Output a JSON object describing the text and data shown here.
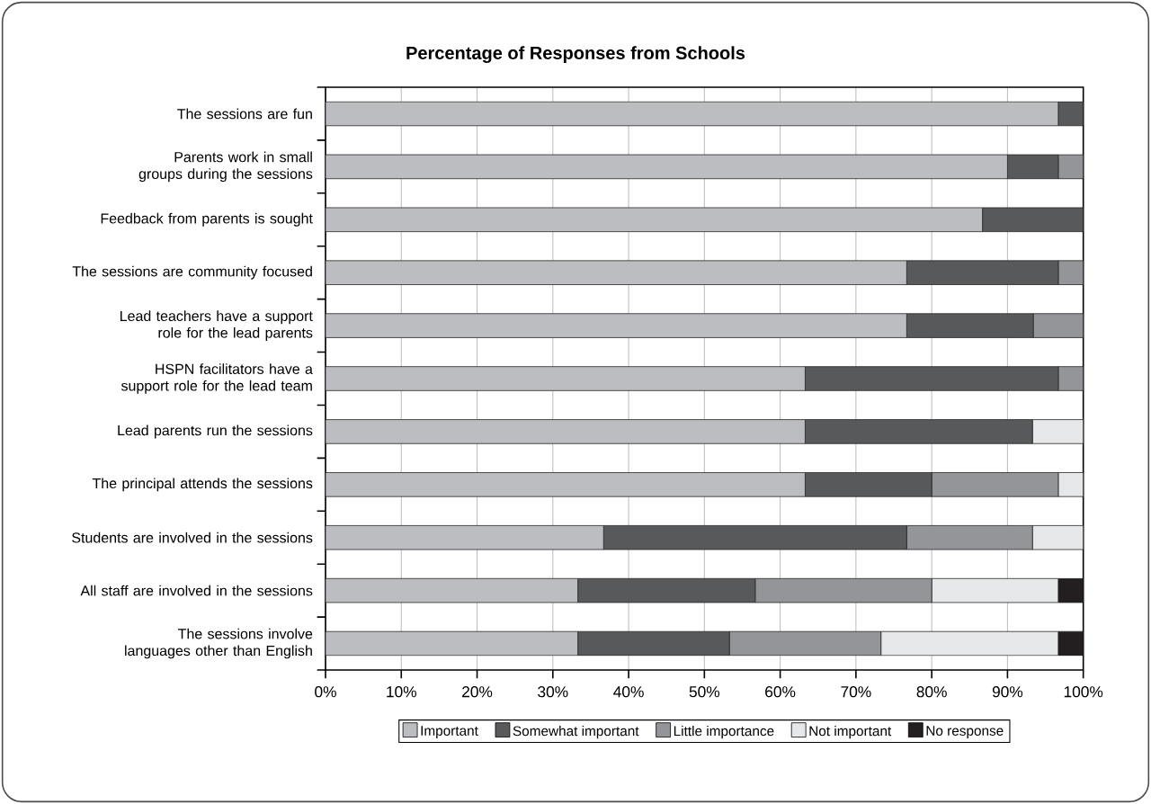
{
  "chart_data": {
    "type": "bar",
    "orientation": "horizontal",
    "stacked": true,
    "title": "Percentage of Responses from Schools",
    "categories": [
      "The sessions are fun",
      "Parents work in small groups during the sessions",
      "Feedback from parents is sought",
      "The sessions are community focused",
      "Lead teachers have a support role for the lead parents",
      "HSPN facilitators have a support role for the lead team",
      "Lead parents run the sessions",
      "The principal attends the sessions",
      "Students are involved in the sessions",
      "All staff are involved in the sessions",
      "The sessions involve languages other than English"
    ],
    "series": [
      {
        "name": "Important",
        "color": "#bcbdc0",
        "values": [
          96.7,
          90,
          86.7,
          76.7,
          76.7,
          63.3,
          63.3,
          63.3,
          36.7,
          33.3,
          33.3
        ]
      },
      {
        "name": "Somewhat important",
        "color": "#58595b",
        "values": [
          3.3,
          6.7,
          13.3,
          20,
          16.7,
          33.4,
          30,
          16.7,
          40,
          23.4,
          20
        ]
      },
      {
        "name": "Little importance",
        "color": "#939598",
        "values": [
          0,
          3.3,
          0,
          3.3,
          6.6,
          3.3,
          0,
          16.7,
          16.6,
          23.3,
          20
        ]
      },
      {
        "name": "Not important",
        "color": "#e6e7e8",
        "values": [
          0,
          0,
          0,
          0,
          0,
          0,
          6.7,
          3.3,
          6.7,
          16.7,
          23.4
        ]
      },
      {
        "name": "No response",
        "color": "#231f20",
        "values": [
          0,
          0,
          0,
          0,
          0,
          0,
          0,
          0,
          0,
          3.3,
          3.3
        ]
      }
    ],
    "xlim": [
      0,
      100
    ],
    "xticks": [
      {
        "value": 0,
        "label": "0%"
      },
      {
        "value": 10,
        "label": "10%"
      },
      {
        "value": 20,
        "label": "20%"
      },
      {
        "value": 30,
        "label": "30%"
      },
      {
        "value": 40,
        "label": "40%"
      },
      {
        "value": 50,
        "label": "50%"
      },
      {
        "value": 60,
        "label": "60%"
      },
      {
        "value": 70,
        "label": "70%"
      },
      {
        "value": 80,
        "label": "80%"
      },
      {
        "value": 90,
        "label": "90%"
      },
      {
        "value": 100,
        "label": "100%"
      }
    ],
    "grid": "x",
    "legend": "bottom"
  }
}
